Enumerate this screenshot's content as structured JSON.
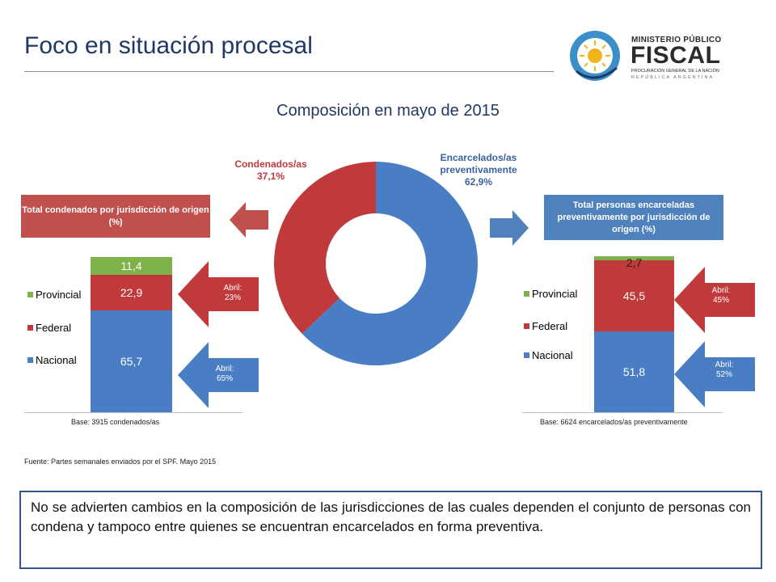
{
  "page": {
    "title": "Foco en situación procesal",
    "source": "Fuente: Partes semanales enviados por el SPF. Mayo 2015",
    "note": "No se advierten cambios en la composición de las jurisdicciones de las cuales dependen el conjunto de personas con condena y tampoco entre quienes se encuentran encarcelados en forma preventiva."
  },
  "logo": {
    "line1": "MINISTERIO PÚBLICO",
    "line2": "FISCAL",
    "line3": "PROCURACIÓN GENERAL DE LA NACIÓN",
    "line4": "REPÚBLICA ARGENTINA"
  },
  "colors": {
    "nacional": "#4a7ec4",
    "federal": "#c0393b",
    "provincial": "#7fb24a",
    "title": "#1f3864"
  },
  "callouts": {
    "condenados_box": "Total condenados por jurisdicción de origen (%)",
    "encarcelados_box": "Total personas encarceladas preventivamente por jurisdicción de origen (%)",
    "cond_abril_federal": [
      "Abril:",
      "23%"
    ],
    "cond_abril_nacional": [
      "Abril:",
      "65%"
    ],
    "enc_abril_federal": [
      "Abril:",
      "45%"
    ],
    "enc_abril_nacional": [
      "Abril:",
      "52%"
    ]
  },
  "chart_data": [
    {
      "type": "pie",
      "title": "Composición en mayo de 2015",
      "donut": true,
      "slices": [
        {
          "name": "Encarcelados/as preventivamente",
          "value": 62.9,
          "label": "62,9%",
          "color": "#4a7ec4"
        },
        {
          "name": "Condenados/as",
          "value": 37.1,
          "label": "37,1%",
          "color": "#c0393b"
        }
      ]
    },
    {
      "type": "bar",
      "stacked": true,
      "base_label": "Base: 3915 condenados/as",
      "series": [
        {
          "name": "Nacional",
          "value": 65.7,
          "label": "65,7",
          "color": "#4a7ec4"
        },
        {
          "name": "Federal",
          "value": 22.9,
          "label": "22,9",
          "color": "#c0393b"
        },
        {
          "name": "Provincial",
          "value": 11.4,
          "label": "11,4",
          "color": "#7fb24a"
        }
      ]
    },
    {
      "type": "bar",
      "stacked": true,
      "base_label": "Base: 6624 encarcelados/as preventivamente",
      "series": [
        {
          "name": "Nacional",
          "value": 51.8,
          "label": "51,8",
          "color": "#4a7ec4"
        },
        {
          "name": "Federal",
          "value": 45.5,
          "label": "45,5",
          "color": "#c0393b"
        },
        {
          "name": "Provincial",
          "value": 2.7,
          "label": "2,7",
          "color": "#7fb24a"
        }
      ]
    }
  ]
}
